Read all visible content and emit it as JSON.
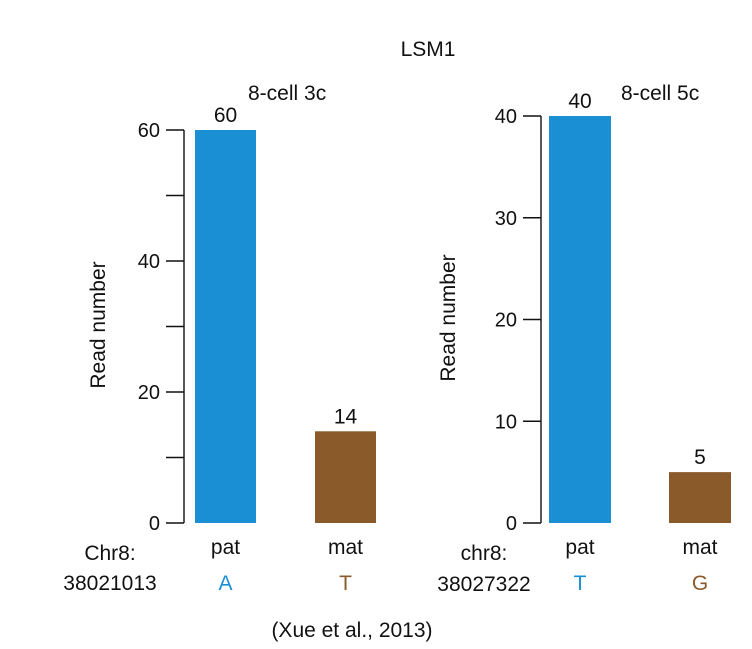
{
  "figure": {
    "title": "LSM1",
    "citation": "(Xue et al., 2013)",
    "colors": {
      "pat": "#1b8fd3",
      "mat": "#8b5a2b",
      "axis": "#111111"
    }
  },
  "chart_data": [
    {
      "type": "bar",
      "annotation": "8-cell  3c",
      "ylabel": "Read number",
      "ylim": [
        0,
        60
      ],
      "yticks": [
        0,
        20,
        40,
        60
      ],
      "yminor": [
        10,
        30,
        50
      ],
      "categories": [
        "pat",
        "mat"
      ],
      "values": [
        60,
        14
      ],
      "bar_colors": [
        "#1b8fd3",
        "#8b5a2b"
      ],
      "alleles": [
        "A",
        "T"
      ],
      "locus_lines": [
        "Chr8:",
        "38021013"
      ]
    },
    {
      "type": "bar",
      "annotation": "8-cell 5c",
      "ylabel": "Read number",
      "ylim": [
        0,
        40
      ],
      "yticks": [
        0,
        10,
        20,
        30,
        40
      ],
      "yminor": [],
      "categories": [
        "pat",
        "mat"
      ],
      "values": [
        40,
        5
      ],
      "bar_colors": [
        "#1b8fd3",
        "#8b5a2b"
      ],
      "alleles": [
        "T",
        "G"
      ],
      "locus_lines": [
        "chr8:",
        "38027322"
      ]
    }
  ]
}
